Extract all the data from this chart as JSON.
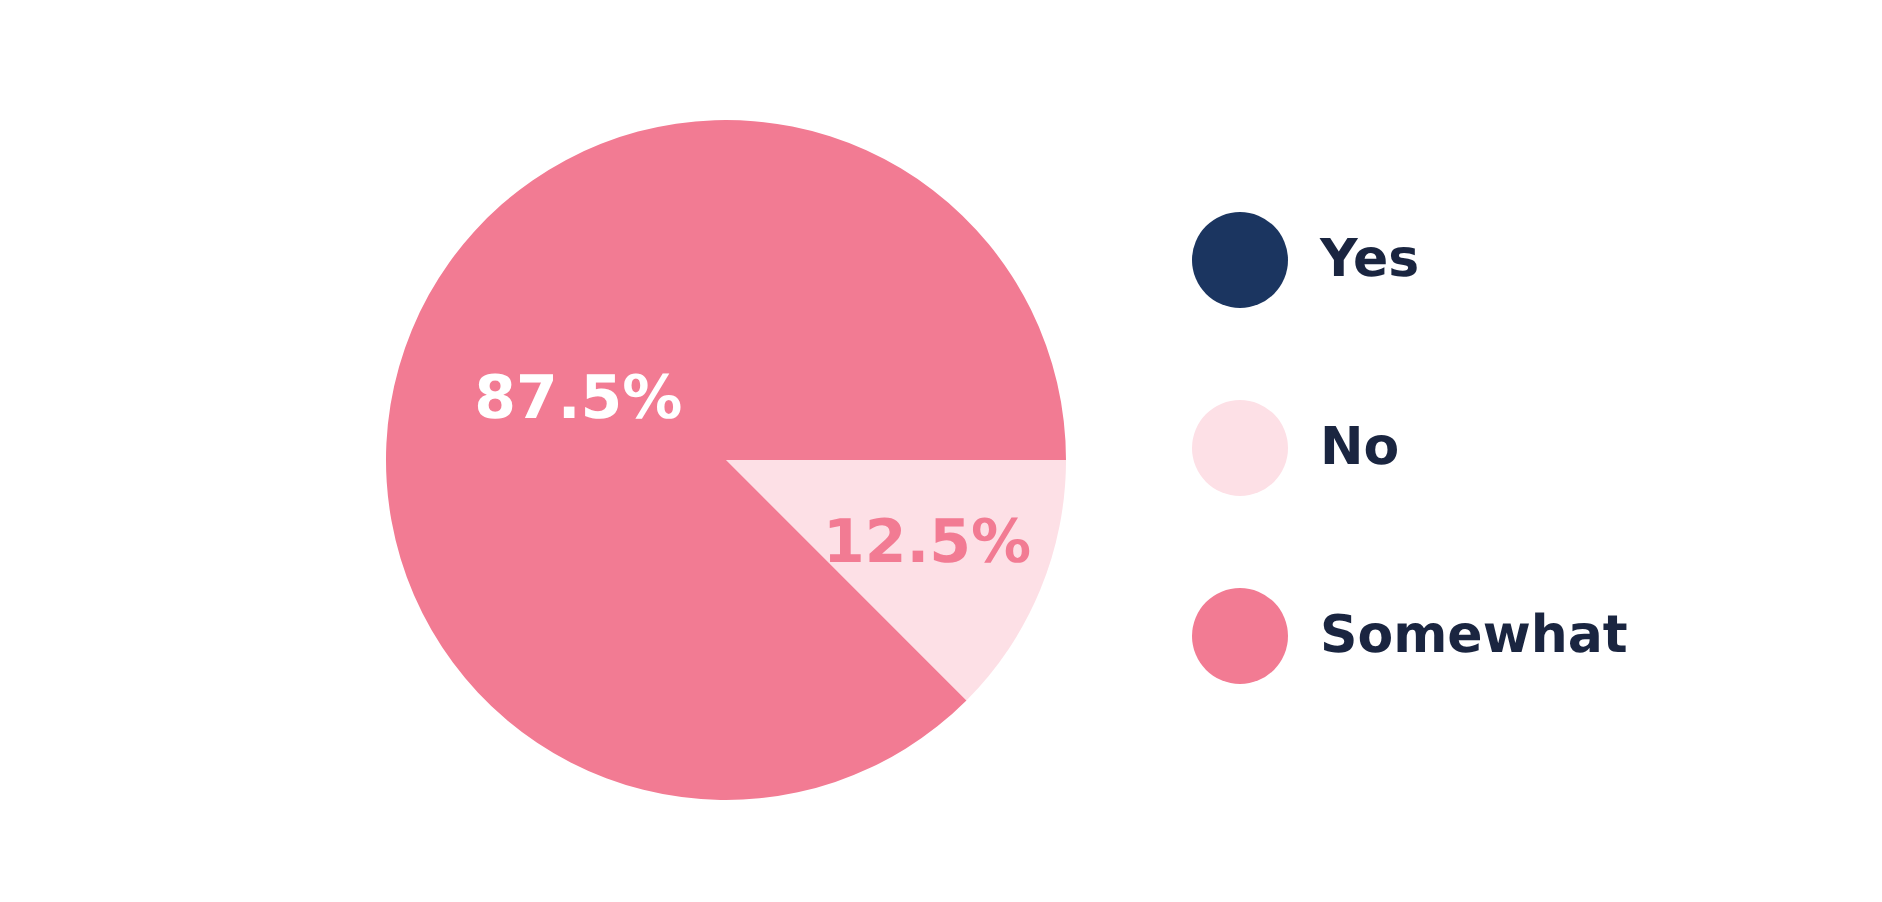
{
  "chart_data": {
    "type": "pie",
    "categories": [
      "Yes",
      "No",
      "Somewhat"
    ],
    "values": [
      0,
      12.5,
      87.5
    ],
    "colors": [
      "#1b3560",
      "#fde0e6",
      "#f27b93"
    ],
    "value_labels": [
      null,
      "12.5%",
      "87.5%"
    ],
    "legend": "right"
  }
}
